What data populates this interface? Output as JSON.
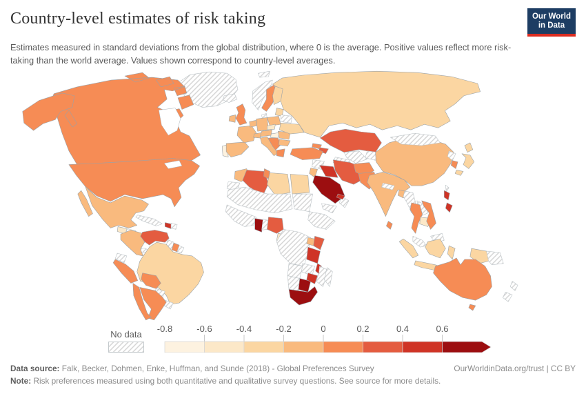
{
  "header": {
    "title": "Country-level estimates of risk taking",
    "subtitle": "Estimates measured in standard deviations from the global distribution, where 0 is the average. Positive values reflect more risk-taking than the world average. Values shown correspond to country-level averages.",
    "logo_line1": "Our World",
    "logo_line2": "in Data"
  },
  "legend": {
    "no_data_label": "No data",
    "tick_labels": [
      "-0.8",
      "-0.6",
      "-0.4",
      "-0.2",
      "0",
      "0.2",
      "0.4",
      "0.6"
    ],
    "bin_colors": [
      "#fdf2e0",
      "#fce8c8",
      "#fbd6a2",
      "#f9ba7e",
      "#f68c55",
      "#e45c40",
      "#cf3426",
      "#9c0e10"
    ],
    "bin_ranges": [
      "-0.8 to -0.6",
      "-0.6 to -0.4",
      "-0.4 to -0.2",
      "-0.2 to 0",
      "0 to 0.2",
      "0.2 to 0.4",
      "0.4 to 0.6",
      "more than 0.6"
    ],
    "arrow_on_last_bin": true,
    "hatch_color": "#d2d2d2"
  },
  "footer": {
    "source_label": "Data source:",
    "source_text": "Falk, Becker, Dohmen, Enke, Huffman, and Sunde (2018) - Global Preferences Survey",
    "citation": "OurWorldinData.org/trust | CC BY",
    "note_label": "Note:",
    "note_text": "Risk preferences measured using both quantitative and qualitative survey questions. See source for more details."
  },
  "chart_data": {
    "type": "choropleth-world-map",
    "title": "Country-level estimates of risk taking",
    "unit": "standard deviations from the global average (0 = world average)",
    "legend_position": "bottom",
    "no_data_style": "diagonal-hatch",
    "countries": [
      {
        "id": "canada",
        "name": "Canada",
        "bin": 5
      },
      {
        "id": "usa",
        "name": "United States",
        "bin": 5
      },
      {
        "id": "greenland",
        "name": "Greenland",
        "bin": 0
      },
      {
        "id": "iceland",
        "name": "Iceland",
        "bin": 0
      },
      {
        "id": "mexico",
        "name": "Mexico",
        "bin": 4
      },
      {
        "id": "guatemala",
        "name": "Guatemala",
        "bin": 2
      },
      {
        "id": "honduras",
        "name": "Honduras",
        "bin": 0
      },
      {
        "id": "nicaragua",
        "name": "Nicaragua",
        "bin": 1
      },
      {
        "id": "costa-rica",
        "name": "Costa Rica",
        "bin": 5
      },
      {
        "id": "panama",
        "name": "Panama",
        "bin": 0
      },
      {
        "id": "cuba",
        "name": "Cuba",
        "bin": 0
      },
      {
        "id": "haiti",
        "name": "Haiti",
        "bin": 7
      },
      {
        "id": "dominican-republic",
        "name": "Dominican Republic",
        "bin": 0
      },
      {
        "id": "colombia",
        "name": "Colombia",
        "bin": 4
      },
      {
        "id": "venezuela",
        "name": "Venezuela",
        "bin": 6
      },
      {
        "id": "guyana",
        "name": "Guyana",
        "bin": 0
      },
      {
        "id": "suriname",
        "name": "Suriname",
        "bin": 5
      },
      {
        "id": "french-guiana",
        "name": "French Guiana",
        "bin": 0
      },
      {
        "id": "ecuador",
        "name": "Ecuador",
        "bin": 0
      },
      {
        "id": "peru",
        "name": "Peru",
        "bin": 5
      },
      {
        "id": "brazil",
        "name": "Brazil",
        "bin": 3
      },
      {
        "id": "bolivia",
        "name": "Bolivia",
        "bin": 5
      },
      {
        "id": "paraguay",
        "name": "Paraguay",
        "bin": 0
      },
      {
        "id": "uruguay",
        "name": "Uruguay",
        "bin": 0
      },
      {
        "id": "chile",
        "name": "Chile",
        "bin": 5
      },
      {
        "id": "argentina",
        "name": "Argentina",
        "bin": 5
      },
      {
        "id": "norway",
        "name": "Norway",
        "bin": 0
      },
      {
        "id": "svalbard",
        "name": "Svalbard",
        "bin": 0
      },
      {
        "id": "sweden",
        "name": "Sweden",
        "bin": 5
      },
      {
        "id": "finland",
        "name": "Finland",
        "bin": 3
      },
      {
        "id": "denmark",
        "name": "Denmark",
        "bin": 0
      },
      {
        "id": "uk",
        "name": "United Kingdom",
        "bin": 5
      },
      {
        "id": "ireland",
        "name": "Ireland",
        "bin": 4
      },
      {
        "id": "portugal",
        "name": "Portugal",
        "bin": 1
      },
      {
        "id": "spain",
        "name": "Spain",
        "bin": 4
      },
      {
        "id": "france",
        "name": "France",
        "bin": 4
      },
      {
        "id": "netherlands-belgium",
        "name": "Netherlands / Belgium",
        "bin": 4
      },
      {
        "id": "germany",
        "name": "Germany",
        "bin": 4
      },
      {
        "id": "switzerland",
        "name": "Switzerland",
        "bin": 4
      },
      {
        "id": "austria",
        "name": "Austria",
        "bin": 4
      },
      {
        "id": "czechia",
        "name": "Czechia",
        "bin": 2
      },
      {
        "id": "poland",
        "name": "Poland",
        "bin": 4
      },
      {
        "id": "hungary",
        "name": "Hungary",
        "bin": 1
      },
      {
        "id": "balkans",
        "name": "Croatia / Serbia / Bosnia",
        "bin": 5
      },
      {
        "id": "italy",
        "name": "Italy",
        "bin": 4
      },
      {
        "id": "greece",
        "name": "Greece",
        "bin": 5
      },
      {
        "id": "romania",
        "name": "Romania",
        "bin": 4
      },
      {
        "id": "bulgaria",
        "name": "Bulgaria",
        "bin": 4
      },
      {
        "id": "baltics",
        "name": "Estonia / Latvia",
        "bin": 3
      },
      {
        "id": "belarus",
        "name": "Belarus",
        "bin": 0
      },
      {
        "id": "ukraine",
        "name": "Ukraine",
        "bin": 3
      },
      {
        "id": "russia",
        "name": "Russia",
        "bin": 3
      },
      {
        "id": "kazakhstan",
        "name": "Kazakhstan",
        "bin": 6
      },
      {
        "id": "uzbekistan",
        "name": "Uzbekistan",
        "bin": 0
      },
      {
        "id": "turkmenistan",
        "name": "Turkmenistan",
        "bin": 0
      },
      {
        "id": "kyrgyzstan-tajikistan",
        "name": "Kyrgyzstan / Tajikistan",
        "bin": 0
      },
      {
        "id": "georgia",
        "name": "Georgia",
        "bin": 5
      },
      {
        "id": "azerbaijan",
        "name": "Azerbaijan",
        "bin": 6
      },
      {
        "id": "turkey",
        "name": "Turkey",
        "bin": 5
      },
      {
        "id": "syria",
        "name": "Syria",
        "bin": 0
      },
      {
        "id": "iraq",
        "name": "Iraq",
        "bin": 7
      },
      {
        "id": "iran",
        "name": "Iran",
        "bin": 6
      },
      {
        "id": "saudi-arabia",
        "name": "Saudi Arabia",
        "bin": 8
      },
      {
        "id": "yemen",
        "name": "Yemen",
        "bin": 0
      },
      {
        "id": "oman",
        "name": "Oman",
        "bin": 0
      },
      {
        "id": "uae",
        "name": "United Arab Emirates",
        "bin": 7
      },
      {
        "id": "jordan",
        "name": "Jordan",
        "bin": 4
      },
      {
        "id": "afghanistan",
        "name": "Afghanistan",
        "bin": 5
      },
      {
        "id": "pakistan",
        "name": "Pakistan",
        "bin": 5
      },
      {
        "id": "india",
        "name": "India",
        "bin": 4
      },
      {
        "id": "bangladesh",
        "name": "Bangladesh",
        "bin": 4
      },
      {
        "id": "nepal",
        "name": "Nepal",
        "bin": 0
      },
      {
        "id": "sri-lanka",
        "name": "Sri Lanka",
        "bin": 5
      },
      {
        "id": "myanmar",
        "name": "Myanmar",
        "bin": 0
      },
      {
        "id": "thailand",
        "name": "Thailand",
        "bin": 5
      },
      {
        "id": "laos",
        "name": "Laos",
        "bin": 0
      },
      {
        "id": "cambodia",
        "name": "Cambodia",
        "bin": 2
      },
      {
        "id": "vietnam",
        "name": "Vietnam",
        "bin": 5
      },
      {
        "id": "malaysia",
        "name": "Malaysia",
        "bin": 0
      },
      {
        "id": "china",
        "name": "China",
        "bin": 4
      },
      {
        "id": "mongolia",
        "name": "Mongolia",
        "bin": 0
      },
      {
        "id": "north-korea",
        "name": "North Korea",
        "bin": 0
      },
      {
        "id": "south-korea",
        "name": "South Korea",
        "bin": 5
      },
      {
        "id": "japan",
        "name": "Japan",
        "bin": 3
      },
      {
        "id": "taiwan",
        "name": "Taiwan",
        "bin": 0
      },
      {
        "id": "philippines",
        "name": "Philippines",
        "bin": 7
      },
      {
        "id": "indonesia",
        "name": "Indonesia",
        "bin": 3
      },
      {
        "id": "papua-new-guinea",
        "name": "Papua New Guinea",
        "bin": 0
      },
      {
        "id": "australia",
        "name": "Australia",
        "bin": 5
      },
      {
        "id": "new-zealand",
        "name": "New Zealand",
        "bin": 0
      },
      {
        "id": "morocco",
        "name": "Morocco",
        "bin": 4
      },
      {
        "id": "western-sahara",
        "name": "Western Sahara",
        "bin": 0
      },
      {
        "id": "algeria",
        "name": "Algeria",
        "bin": 6
      },
      {
        "id": "tunisia",
        "name": "Tunisia",
        "bin": 5
      },
      {
        "id": "libya",
        "name": "Libya",
        "bin": 3
      },
      {
        "id": "egypt",
        "name": "Egypt",
        "bin": 3
      },
      {
        "id": "sudan",
        "name": "Sudan",
        "bin": 0
      },
      {
        "id": "sahel",
        "name": "Mauritania / Mali / Niger / Chad",
        "bin": 0
      },
      {
        "id": "west-africa",
        "name": "Senegal / Guinea / Ivory Coast",
        "bin": 0
      },
      {
        "id": "ghana",
        "name": "Ghana",
        "bin": 8
      },
      {
        "id": "togo-benin",
        "name": "Togo / Benin",
        "bin": 0
      },
      {
        "id": "nigeria",
        "name": "Nigeria",
        "bin": 6
      },
      {
        "id": "cameroon",
        "name": "Cameroon",
        "bin": 2
      },
      {
        "id": "central-africa",
        "name": "DR Congo / Central Africa",
        "bin": 0
      },
      {
        "id": "horn-of-africa",
        "name": "Ethiopia / Somalia",
        "bin": 0
      },
      {
        "id": "uganda",
        "name": "Uganda",
        "bin": 4
      },
      {
        "id": "kenya",
        "name": "Kenya",
        "bin": 6
      },
      {
        "id": "tanzania",
        "name": "Tanzania",
        "bin": 7
      },
      {
        "id": "malawi",
        "name": "Malawi",
        "bin": 7
      },
      {
        "id": "mozambique",
        "name": "Mozambique",
        "bin": 0
      },
      {
        "id": "zambia",
        "name": "Zambia",
        "bin": 0
      },
      {
        "id": "angola",
        "name": "Angola",
        "bin": 0
      },
      {
        "id": "namibia",
        "name": "Namibia",
        "bin": 0
      },
      {
        "id": "botswana",
        "name": "Botswana",
        "bin": 8
      },
      {
        "id": "zimbabwe",
        "name": "Zimbabwe",
        "bin": 7
      },
      {
        "id": "south-africa",
        "name": "South Africa",
        "bin": 8
      },
      {
        "id": "madagascar",
        "name": "Madagascar",
        "bin": 0
      }
    ]
  }
}
